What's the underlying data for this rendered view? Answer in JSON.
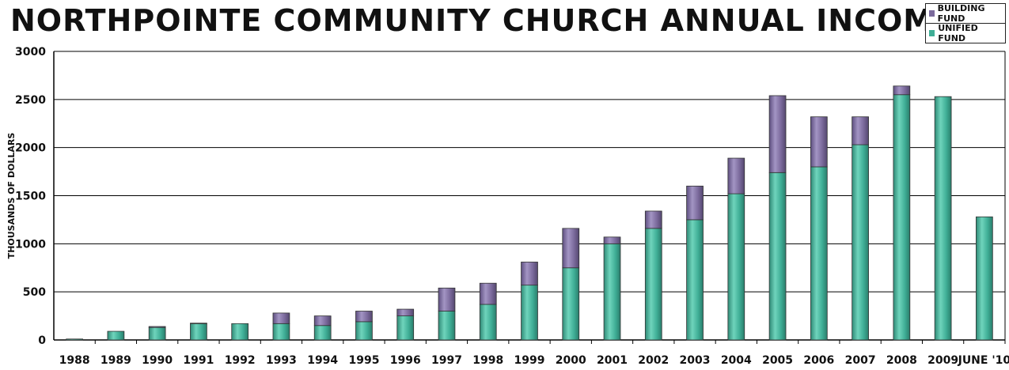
{
  "chart_data": {
    "type": "bar",
    "stacked": true,
    "title": "NORTHPOINTE COMMUNITY CHURCH ANNUAL INCOME",
    "ylabel": "THOUSANDS OF DOLLARS",
    "xlabel": "",
    "ylim": [
      0,
      3000
    ],
    "yticks": [
      "0",
      "500",
      "1000",
      "1500",
      "2000",
      "2500",
      "3000"
    ],
    "grid": true,
    "legend_position": "top-right",
    "categories": [
      "1988",
      "1989",
      "1990",
      "1991",
      "1992",
      "1993",
      "1994",
      "1995",
      "1996",
      "1997",
      "1998",
      "1999",
      "2000",
      "2001",
      "2002",
      "2003",
      "2004",
      "2005",
      "2006",
      "2007",
      "2008",
      "2009",
      "JUNE '10"
    ],
    "series": [
      {
        "name": "UNIFIED FUND",
        "color": "#3fae96",
        "values": [
          10,
          90,
          130,
          170,
          170,
          170,
          150,
          190,
          250,
          300,
          370,
          570,
          750,
          1000,
          1160,
          1250,
          1520,
          1740,
          1800,
          2030,
          2550,
          2530,
          1280
        ]
      },
      {
        "name": "BUILDING FUND",
        "color": "#7b6a9c",
        "values": [
          0,
          0,
          10,
          5,
          0,
          110,
          100,
          110,
          70,
          240,
          220,
          240,
          410,
          70,
          180,
          350,
          370,
          800,
          520,
          290,
          90,
          0,
          0
        ]
      }
    ]
  }
}
